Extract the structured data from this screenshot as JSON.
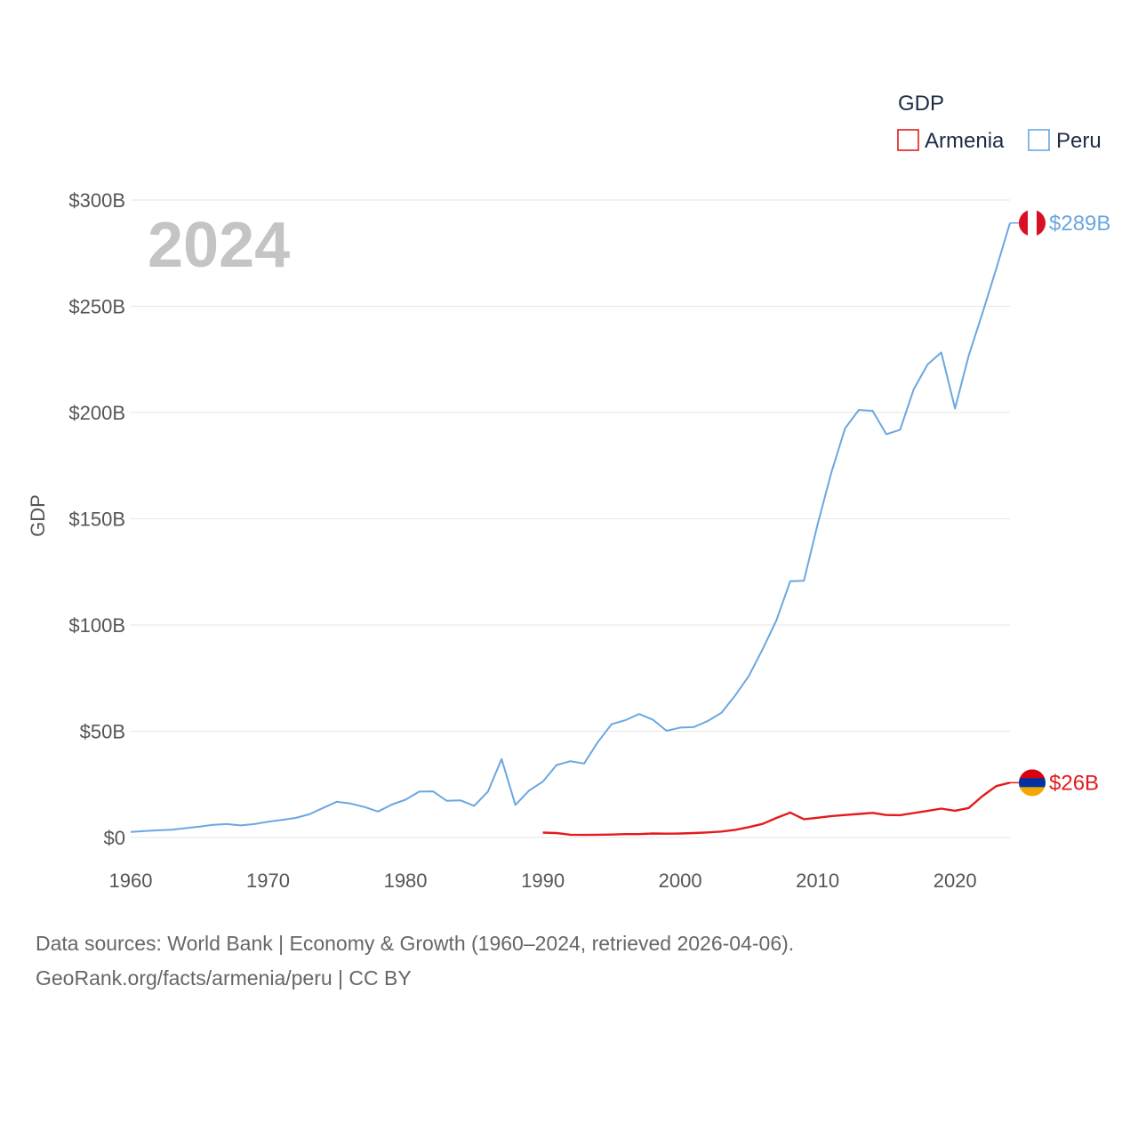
{
  "chart_data": {
    "type": "line",
    "title": "",
    "year_label": "2024",
    "xlabel": "",
    "ylabel": "GDP",
    "xlim": [
      1960,
      2024
    ],
    "ylim": [
      0,
      300
    ],
    "x_ticks": [
      1960,
      1970,
      1980,
      1990,
      2000,
      2010,
      2020
    ],
    "y_ticks": [
      {
        "value": 0,
        "label": "$0"
      },
      {
        "value": 50,
        "label": "$50B"
      },
      {
        "value": 100,
        "label": "$100B"
      },
      {
        "value": 150,
        "label": "$150B"
      },
      {
        "value": 200,
        "label": "$200B"
      },
      {
        "value": 250,
        "label": "$250B"
      },
      {
        "value": 300,
        "label": "$300B"
      }
    ],
    "legend": {
      "title": "GDP",
      "placement": "top-right"
    },
    "units": "billions USD",
    "series": [
      {
        "name": "Armenia",
        "color": "#e41a1c",
        "end_label": "$26B",
        "flag_colors": [
          "#d90012",
          "#0033a0",
          "#f2a800"
        ],
        "x": [
          1990,
          1991,
          1992,
          1993,
          1994,
          1995,
          1996,
          1997,
          1998,
          1999,
          2000,
          2001,
          2002,
          2003,
          2004,
          2005,
          2006,
          2007,
          2008,
          2009,
          2010,
          2011,
          2012,
          2013,
          2014,
          2015,
          2016,
          2017,
          2018,
          2019,
          2020,
          2021,
          2022,
          2023,
          2024
        ],
        "values": [
          2.3,
          2.1,
          1.3,
          1.2,
          1.3,
          1.4,
          1.6,
          1.6,
          1.9,
          1.8,
          1.9,
          2.1,
          2.4,
          2.8,
          3.6,
          4.9,
          6.4,
          9.2,
          11.7,
          8.6,
          9.3,
          10.1,
          10.6,
          11.1,
          11.6,
          10.6,
          10.5,
          11.5,
          12.5,
          13.6,
          12.6,
          13.9,
          19.5,
          24.2,
          25.8
        ]
      },
      {
        "name": "Peru",
        "color": "#6aa7e0",
        "end_label": "$289B",
        "flag_colors": [
          "#d91023",
          "#ffffff"
        ],
        "x": [
          1960,
          1961,
          1962,
          1963,
          1964,
          1965,
          1966,
          1967,
          1968,
          1969,
          1970,
          1971,
          1972,
          1973,
          1974,
          1975,
          1976,
          1977,
          1978,
          1979,
          1980,
          1981,
          1982,
          1983,
          1984,
          1985,
          1986,
          1987,
          1988,
          1989,
          1990,
          1991,
          1992,
          1993,
          1994,
          1995,
          1996,
          1997,
          1998,
          1999,
          2000,
          2001,
          2002,
          2003,
          2004,
          2005,
          2006,
          2007,
          2008,
          2009,
          2010,
          2011,
          2012,
          2013,
          2014,
          2015,
          2016,
          2017,
          2018,
          2019,
          2020,
          2021,
          2022,
          2023,
          2024
        ],
        "values": [
          2.6,
          3.0,
          3.4,
          3.7,
          4.4,
          5.1,
          6.0,
          6.3,
          5.7,
          6.3,
          7.4,
          8.3,
          9.2,
          10.9,
          13.9,
          16.8,
          16.0,
          14.4,
          12.2,
          15.5,
          17.8,
          21.6,
          21.7,
          17.3,
          17.5,
          14.9,
          21.6,
          36.9,
          15.3,
          22.1,
          26.3,
          34.1,
          35.9,
          34.8,
          44.9,
          53.3,
          55.2,
          58.1,
          55.5,
          50.2,
          51.7,
          52.0,
          54.8,
          58.7,
          66.8,
          76.1,
          88.6,
          102.2,
          120.6,
          120.8,
          147.5,
          171.8,
          192.6,
          201.2,
          200.8,
          189.8,
          191.9,
          211.0,
          222.6,
          228.3,
          201.9,
          226.8,
          246.8,
          267.6,
          289.2
        ]
      }
    ]
  },
  "footer": {
    "source_line": "Data sources: World Bank | Economy & Growth (1960–2024, retrieved 2026-04-06).",
    "credit_line": "GeoRank.org/facts/armenia/peru | CC BY"
  }
}
